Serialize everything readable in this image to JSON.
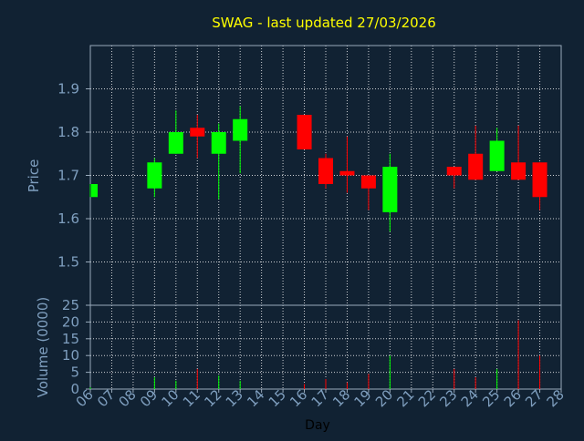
{
  "chart_data": [
    {
      "type": "candlestick",
      "title": "SWAG - last updated 27/03/2026",
      "ylabel": "Price",
      "ylim": [
        1.4,
        2.0
      ],
      "yticks": [
        "1.5",
        "1.6",
        "1.7",
        "1.8",
        "1.9"
      ],
      "ytick_values": [
        1.5,
        1.6,
        1.7,
        1.8,
        1.9
      ],
      "grid": true,
      "colors": {
        "background": "#112233",
        "plot_border": "#99aabb",
        "grid": "#ffffff",
        "title": "#ffff00",
        "axis_label": "#7f9fbf",
        "up": "#00ff00",
        "down": "#ff0000"
      },
      "candles": [
        {
          "day": "06",
          "open": 1.65,
          "high": 1.68,
          "low": 1.65,
          "close": 1.68
        },
        {
          "day": "09",
          "open": 1.67,
          "high": 1.74,
          "low": 1.65,
          "close": 1.73
        },
        {
          "day": "10",
          "open": 1.75,
          "high": 1.85,
          "low": 1.75,
          "close": 1.8
        },
        {
          "day": "11",
          "open": 1.81,
          "high": 1.84,
          "low": 1.74,
          "close": 1.79
        },
        {
          "day": "12",
          "open": 1.75,
          "high": 1.82,
          "low": 1.645,
          "close": 1.8
        },
        {
          "day": "13",
          "open": 1.78,
          "high": 1.86,
          "low": 1.705,
          "close": 1.83
        },
        {
          "day": "16",
          "open": 1.84,
          "high": 1.84,
          "low": 1.76,
          "close": 1.76
        },
        {
          "day": "17",
          "open": 1.74,
          "high": 1.75,
          "low": 1.67,
          "close": 1.68
        },
        {
          "day": "18",
          "open": 1.71,
          "high": 1.79,
          "low": 1.66,
          "close": 1.7
        },
        {
          "day": "19",
          "open": 1.7,
          "high": 1.7,
          "low": 1.62,
          "close": 1.67
        },
        {
          "day": "20",
          "open": 1.615,
          "high": 1.75,
          "low": 1.57,
          "close": 1.72
        },
        {
          "day": "23",
          "open": 1.72,
          "high": 1.72,
          "low": 1.67,
          "close": 1.7
        },
        {
          "day": "24",
          "open": 1.75,
          "high": 1.815,
          "low": 1.69,
          "close": 1.69
        },
        {
          "day": "25",
          "open": 1.71,
          "high": 1.81,
          "low": 1.71,
          "close": 1.78
        },
        {
          "day": "26",
          "open": 1.73,
          "high": 1.815,
          "low": 1.69,
          "close": 1.69
        },
        {
          "day": "27",
          "open": 1.73,
          "high": 1.73,
          "low": 1.62,
          "close": 1.65
        }
      ]
    },
    {
      "type": "bar",
      "ylabel": "Volume (0000)",
      "xlabel": "Day",
      "ylim": [
        0,
        25
      ],
      "yticks": [
        "0",
        "5",
        "10",
        "15",
        "20",
        "25"
      ],
      "ytick_values": [
        0,
        5,
        10,
        15,
        20,
        25
      ],
      "categories": [
        "06",
        "07",
        "08",
        "09",
        "10",
        "11",
        "12",
        "13",
        "14",
        "15",
        "16",
        "17",
        "18",
        "19",
        "20",
        "21",
        "22",
        "23",
        "24",
        "25",
        "26",
        "27",
        "28"
      ],
      "volumes": [
        {
          "day": "06",
          "value": 0.5,
          "direction": "up"
        },
        {
          "day": "09",
          "value": 3.5,
          "direction": "up"
        },
        {
          "day": "10",
          "value": 2.5,
          "direction": "up"
        },
        {
          "day": "11",
          "value": 6,
          "direction": "down"
        },
        {
          "day": "12",
          "value": 4,
          "direction": "up"
        },
        {
          "day": "13",
          "value": 2.5,
          "direction": "up"
        },
        {
          "day": "16",
          "value": 1.5,
          "direction": "down"
        },
        {
          "day": "17",
          "value": 3,
          "direction": "down"
        },
        {
          "day": "18",
          "value": 2,
          "direction": "down"
        },
        {
          "day": "19",
          "value": 4.5,
          "direction": "down"
        },
        {
          "day": "20",
          "value": 10,
          "direction": "up"
        },
        {
          "day": "23",
          "value": 6,
          "direction": "down"
        },
        {
          "day": "24",
          "value": 3.5,
          "direction": "down"
        },
        {
          "day": "25",
          "value": 6,
          "direction": "up"
        },
        {
          "day": "26",
          "value": 20.5,
          "direction": "down"
        },
        {
          "day": "27",
          "value": 10,
          "direction": "down"
        }
      ]
    }
  ]
}
